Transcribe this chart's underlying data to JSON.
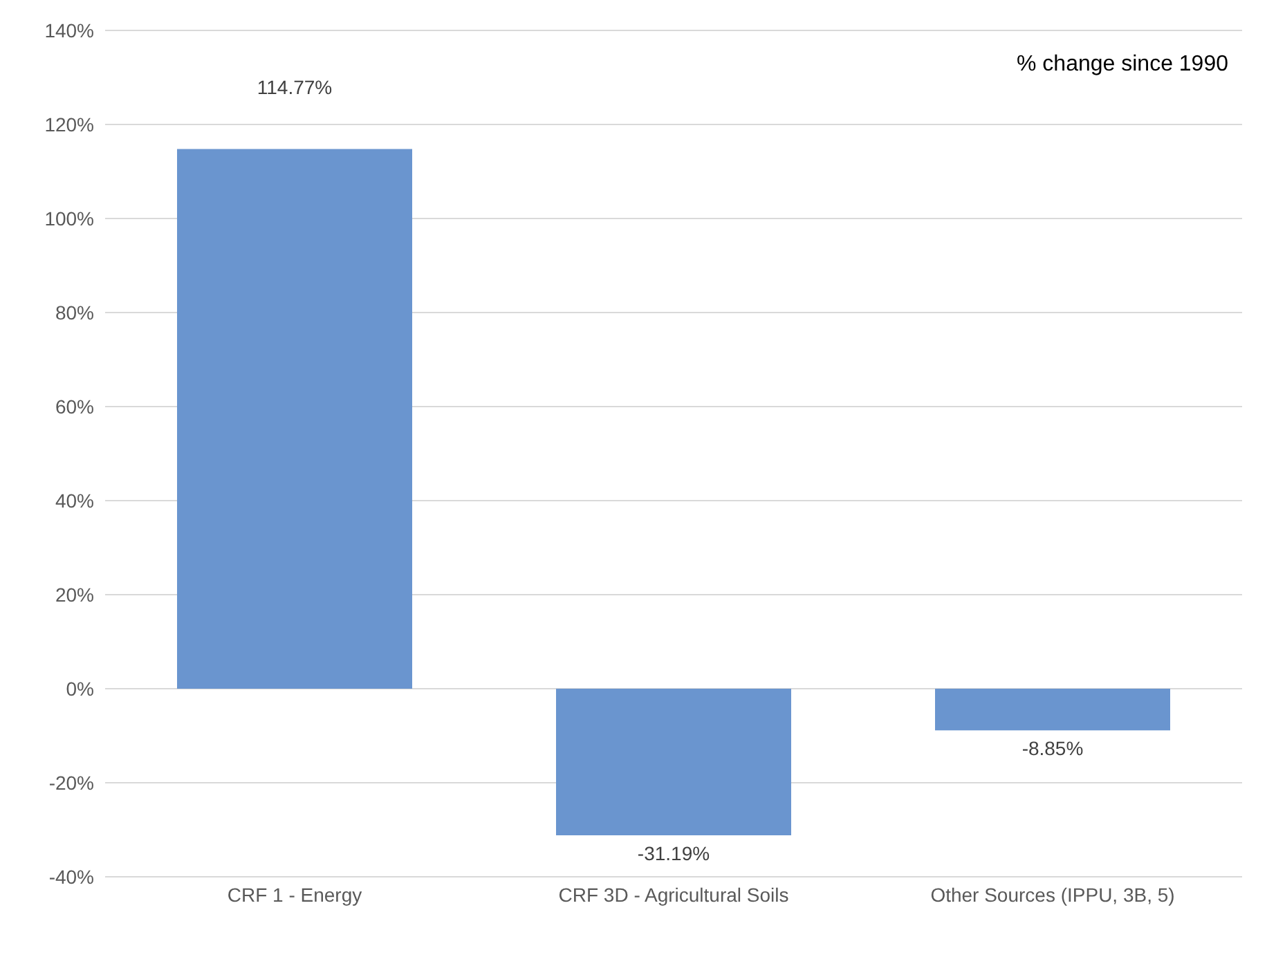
{
  "chart_data": {
    "type": "bar",
    "categories": [
      "CRF 1 - Energy",
      "CRF 3D - Agricultural Soils",
      "Other Sources (IPPU, 3B, 5)"
    ],
    "values": [
      114.77,
      -31.19,
      -8.85
    ],
    "color": "#6a95cf",
    "value_labels": [
      "114.77%",
      "-31.19%",
      "-8.85%"
    ],
    "ylim": [
      -40,
      140
    ],
    "yticks": [
      {
        "value": -40,
        "label": "-40%"
      },
      {
        "value": -20,
        "label": "-20%"
      },
      {
        "value": 0,
        "label": "0%"
      },
      {
        "value": 20,
        "label": "20%"
      },
      {
        "value": 40,
        "label": "40%"
      },
      {
        "value": 60,
        "label": "60%"
      },
      {
        "value": 80,
        "label": "80%"
      },
      {
        "value": 100,
        "label": "100%"
      },
      {
        "value": 120,
        "label": "120%"
      },
      {
        "value": 140,
        "label": "140%"
      }
    ],
    "grid": "y",
    "annotations": [
      "% change since 1990"
    ]
  }
}
